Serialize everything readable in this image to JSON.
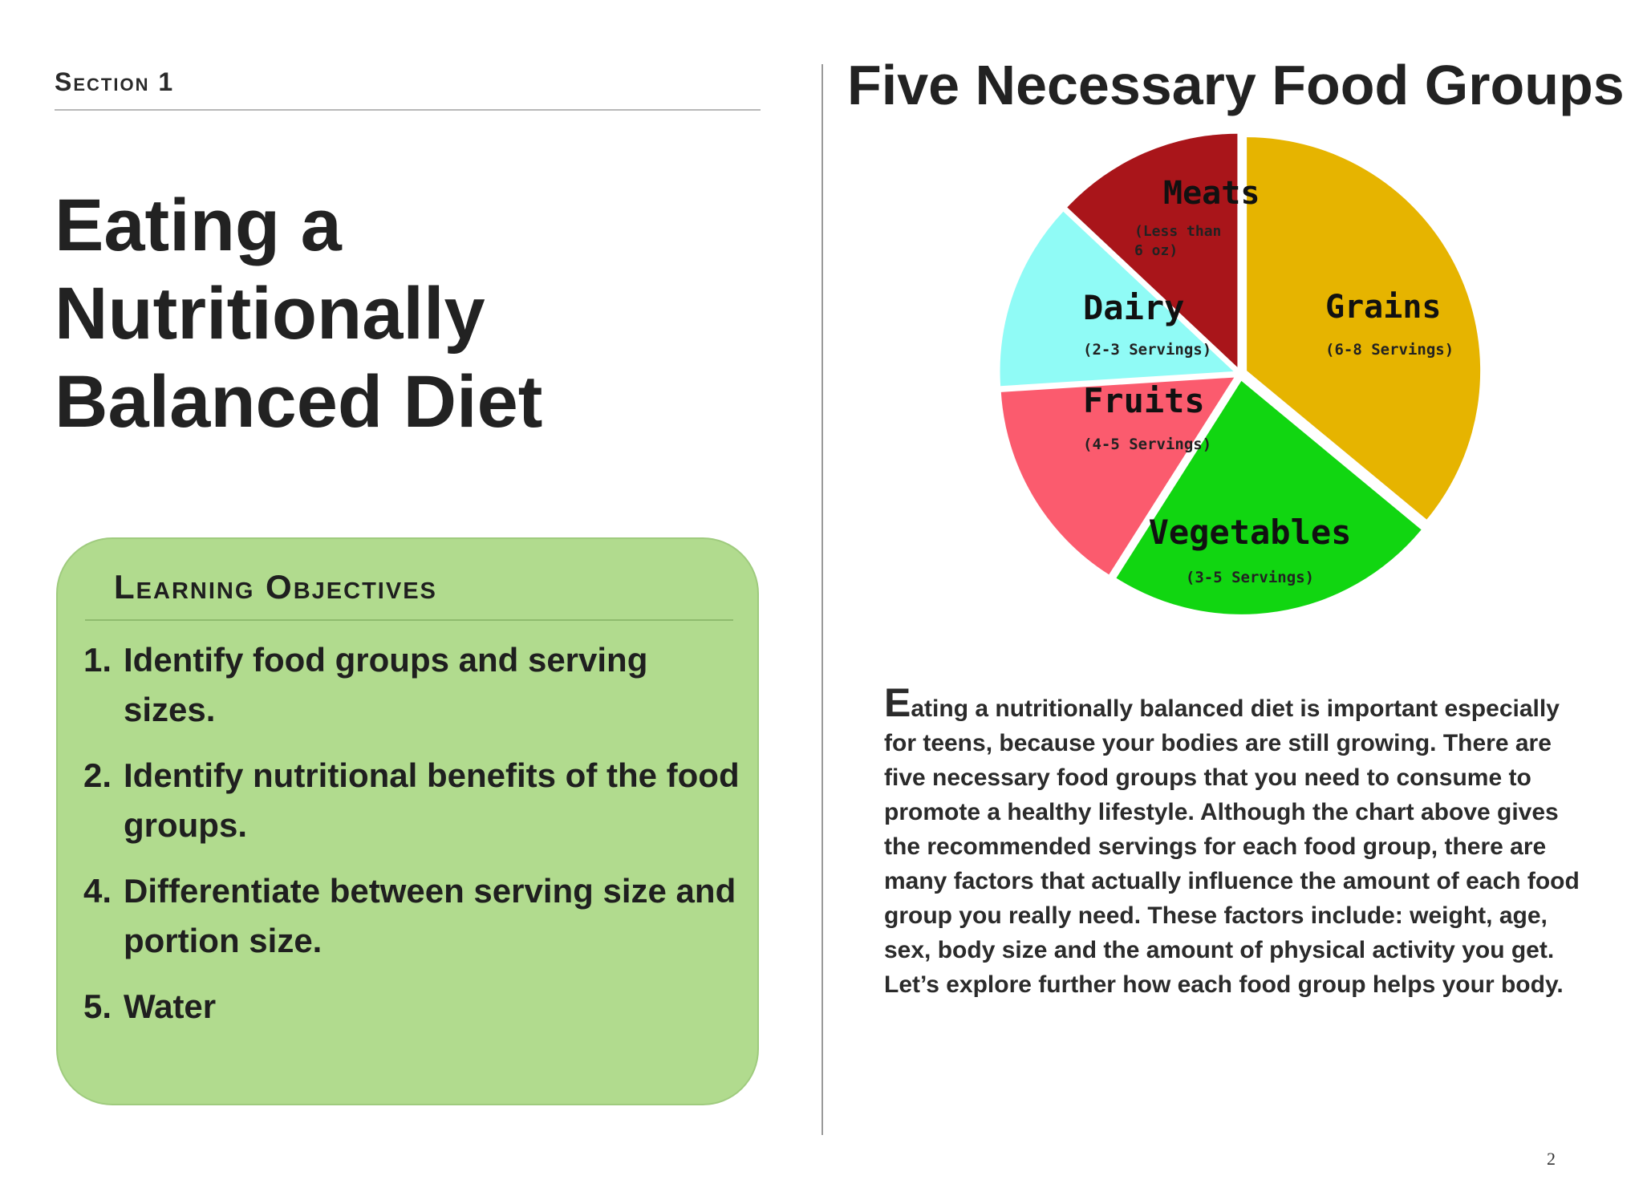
{
  "section": {
    "label": "Section 1"
  },
  "title": [
    "Eating a",
    "Nutritionally",
    "Balanced Diet"
  ],
  "objectives": {
    "heading": "Learning Objectives",
    "items": [
      {
        "num": "1.",
        "text": "Identify food groups and serving sizes."
      },
      {
        "num": "2.",
        "text": "Identify nutritional benefits of the food groups."
      },
      {
        "num": "4.",
        "text": "Differentiate between serving size and portion size."
      },
      {
        "num": "5.",
        "text": "Water"
      }
    ]
  },
  "chart_title": "Five Necessary Food Groups",
  "chart_data": {
    "type": "pie",
    "title": "Five Necessary Food Groups",
    "slices": [
      {
        "label": "Grains",
        "sublabel": "(6-8 Servings)",
        "value": 36,
        "color": "#e6b400"
      },
      {
        "label": "Vegetables",
        "sublabel": "(3-5 Servings)",
        "value": 23,
        "color": "#11d611"
      },
      {
        "label": "Fruits",
        "sublabel": "(4-5 Servings)",
        "value": 15,
        "color": "#fb5b6e"
      },
      {
        "label": "Dairy",
        "sublabel": "(2-3 Servings)",
        "value": 13,
        "color": "#90fbf6"
      },
      {
        "label": "Meats",
        "sublabel": "(Less than 6 oz)",
        "value": 13,
        "color": "#a9151a"
      }
    ]
  },
  "body": {
    "dropcap": "E",
    "text": "ating a nutritionally balanced diet is important especially for teens, because your bodies are still growing. There are five necessary food groups that you need to consume to promote a healthy lifestyle. Although the chart above gives the recommended servings for each food group, there are many factors that actually influence the amount of each food group you really need. These factors include: weight, age, sex, body size and the amount of physical activity you get. Let’s explore further how each food group helps your body."
  },
  "page_number": "2"
}
